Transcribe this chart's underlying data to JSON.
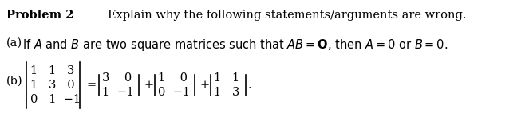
{
  "bg_color": "#ffffff",
  "text_color": "#000000",
  "figsize": [
    6.63,
    1.67
  ],
  "dpi": 100,
  "title": "Problem 2",
  "subtitle": "Explain why the following statements/arguments are wrong.",
  "part_a_prefix": "(a)",
  "part_a_text": "  If $A$ and $B$ are two square matrices such that $AB = \\mathbf{O}$, then $A = 0$ or $B = 0$.",
  "part_b_label": "(b)",
  "mat3_r1": "1   1   3",
  "mat3_r2": "1   3   0",
  "mat3_r3": "0   1  −1",
  "eq": "=",
  "mat2a_r1": "3    0",
  "mat2a_r2": "1  −1",
  "plus": "+",
  "mat2b_r1": "1    0",
  "mat2b_r2": "0  −1",
  "mat2c_r1": "1   1",
  "mat2c_r2": "1   3",
  "period": ".",
  "fs_main": 10.5,
  "fs_matrix": 10.5,
  "lw": 1.2
}
